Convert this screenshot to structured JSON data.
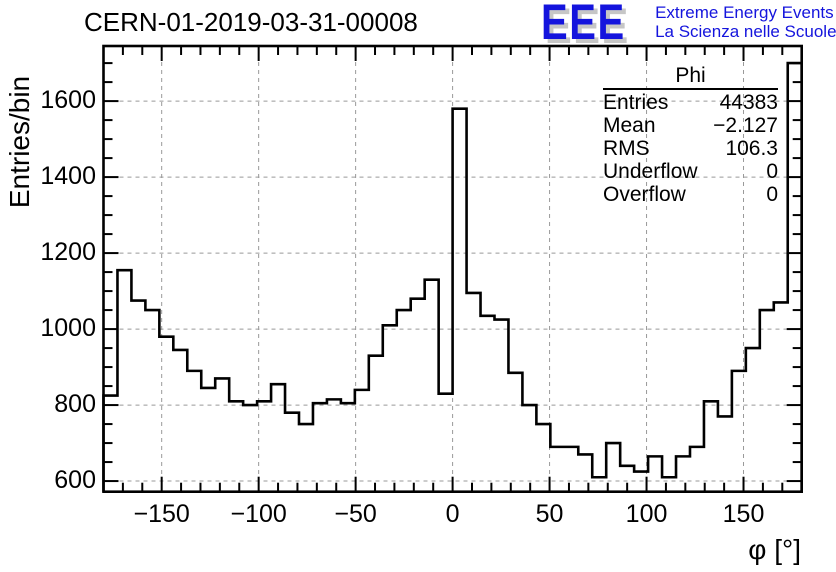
{
  "title": "CERN-01-2019-03-31-00008",
  "logo": {
    "acronym": "EEE",
    "line1": "Extreme Energy Events",
    "line2": "La Scienza nelle Scuole",
    "color": "#1414dd",
    "shadow_color": "#c6c6c6"
  },
  "stats": {
    "title": "Phi",
    "rows": [
      {
        "label": "Entries",
        "value": "44383"
      },
      {
        "label": "Mean",
        "value": "−2.127"
      },
      {
        "label": "RMS",
        "value": "106.3"
      },
      {
        "label": "Underflow",
        "value": "0"
      },
      {
        "label": "Overflow",
        "value": "0"
      }
    ]
  },
  "chart_data": {
    "type": "bar",
    "subtype": "step-histogram",
    "title": "CERN-01-2019-03-31-00008",
    "xlabel": "φ [°]",
    "ylabel": "Entries/bin",
    "xlim": [
      -180,
      180
    ],
    "ylim": [
      572,
      1745
    ],
    "x_ticks": [
      -150,
      -100,
      -50,
      0,
      50,
      100,
      150
    ],
    "x_minor_step": 10,
    "y_ticks": [
      600,
      800,
      1000,
      1200,
      1400,
      1600
    ],
    "y_minor_step": 50,
    "grid": "dashed",
    "legend_position": "none",
    "bins": {
      "start": -180,
      "width": 7.2,
      "count": 50
    },
    "values": [
      825,
      1155,
      1075,
      1050,
      980,
      945,
      890,
      845,
      870,
      810,
      800,
      810,
      855,
      780,
      750,
      805,
      815,
      805,
      840,
      930,
      1010,
      1050,
      1080,
      1130,
      830,
      1580,
      1095,
      1035,
      1025,
      885,
      800,
      750,
      690,
      690,
      670,
      610,
      700,
      640,
      625,
      665,
      610,
      665,
      690,
      810,
      770,
      890,
      950,
      1050,
      1070,
      1700
    ],
    "line_color": "#000000",
    "grid_color": "#999999",
    "frame_color": "#000000"
  }
}
